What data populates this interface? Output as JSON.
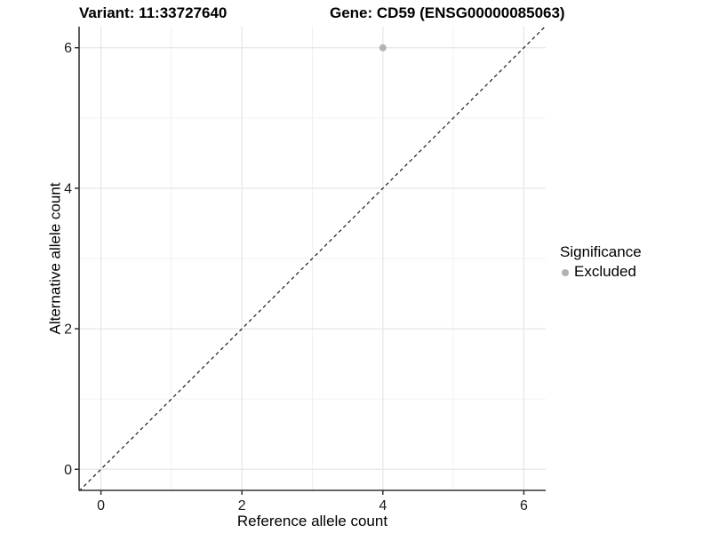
{
  "titles": {
    "variant": "Variant: 11:33727640",
    "gene": "Gene: CD59 (ENSG00000085063)"
  },
  "chart_data": {
    "type": "scatter",
    "title_left": "Variant: 11:33727640",
    "title_right": "Gene: CD59 (ENSG00000085063)",
    "xlabel": "Reference allele count",
    "ylabel": "Alternative allele count",
    "xlim": [
      -0.31,
      6.31
    ],
    "ylim": [
      -0.3,
      6.3
    ],
    "x_ticks": [
      0,
      2,
      4,
      6
    ],
    "y_ticks": [
      0,
      2,
      4,
      6
    ],
    "minor_grid_x": [
      1,
      3,
      5
    ],
    "minor_grid_y": [
      1,
      3,
      5
    ],
    "grid": true,
    "legend_position": "right",
    "series": [
      {
        "name": "Excluded",
        "color": "#b3b3b3",
        "points": [
          {
            "x": 4,
            "y": 6
          }
        ]
      }
    ],
    "identity_line": {
      "style": "dashed",
      "x1": -0.31,
      "y1": -0.31,
      "x2": 6.31,
      "y2": 6.31
    }
  },
  "legend": {
    "title": "Significance",
    "items": [
      {
        "label": "Excluded",
        "color": "#b3b3b3"
      }
    ]
  },
  "colors": {
    "background": "#ffffff",
    "grid_major": "#e6e6e6",
    "grid_minor": "#f0f0f0",
    "axis": "#333333",
    "text": "#1a1a1a",
    "identity_line": "#1a1a1a",
    "point": "#b3b3b3"
  }
}
